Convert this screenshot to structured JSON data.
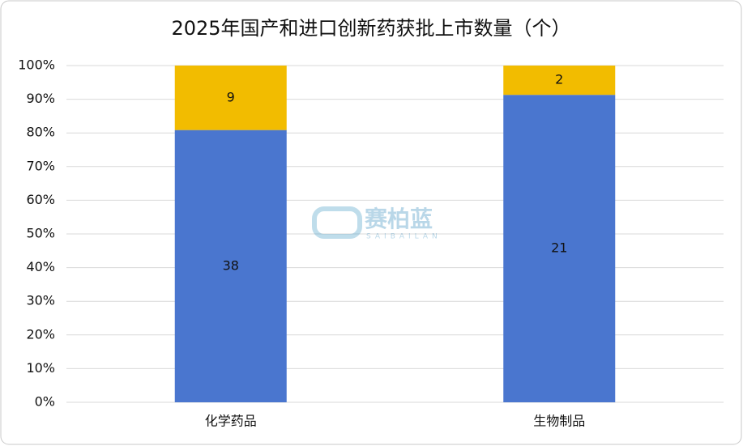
{
  "chart_data": {
    "type": "stacked_percent_bar",
    "title": "2025年国产和进口创新药获批上市数量（个）",
    "categories": [
      "化学药品",
      "生物制品"
    ],
    "series": [
      {
        "color": "#4a76cf",
        "values": [
          38,
          21
        ]
      },
      {
        "color": "#f2bc00",
        "values": [
          9,
          2
        ]
      }
    ],
    "ylim": [
      0,
      100
    ],
    "yticks": [
      {
        "value": 0,
        "label": "0%"
      },
      {
        "value": 10,
        "label": "10%"
      },
      {
        "value": 20,
        "label": "20%"
      },
      {
        "value": 30,
        "label": "30%"
      },
      {
        "value": 40,
        "label": "40%"
      },
      {
        "value": 50,
        "label": "50%"
      },
      {
        "value": 60,
        "label": "60%"
      },
      {
        "value": 70,
        "label": "70%"
      },
      {
        "value": 80,
        "label": "80%"
      },
      {
        "value": 90,
        "label": "90%"
      },
      {
        "value": 100,
        "label": "100%"
      }
    ],
    "grid": true,
    "watermark": {
      "text": "赛柏蓝",
      "subtext": "SAIBAILAN"
    }
  }
}
